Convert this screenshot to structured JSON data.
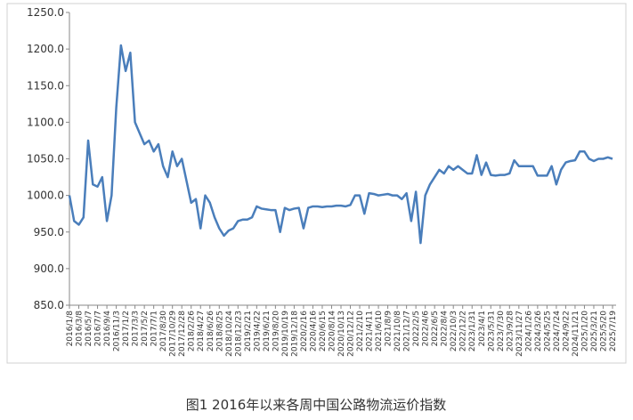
{
  "chart_data": {
    "type": "line",
    "title": "图1 2016年以来各周中国公路物流运价指数",
    "categories": [
      "2016/1/8",
      null,
      "2016/3/8",
      null,
      "2016/5/7",
      null,
      "2016/7/7",
      null,
      "2016/9/4",
      null,
      "2016/11/3",
      null,
      "2017/1/2",
      null,
      "2017/3/3",
      null,
      "2017/5/2",
      null,
      "2017/7/1",
      null,
      "2017/8/30",
      null,
      "2017/10/29",
      null,
      "2017/12/28",
      null,
      "2018/2/26",
      null,
      "2018/4/27",
      null,
      "2018/6/26",
      null,
      "2018/8/25",
      null,
      "2018/10/24",
      null,
      "2018/12/23",
      null,
      "2019/2/21",
      null,
      "2019/4/22",
      null,
      "2019/6/21",
      null,
      "2019/8/20",
      null,
      "2019/10/19",
      null,
      "2019/12/18",
      null,
      "2020/2/16",
      null,
      "2020/4/16",
      null,
      "2020/6/15",
      null,
      "2020/8/14",
      null,
      "2020/10/13",
      null,
      "2020/12/12",
      null,
      "2021/2/10",
      null,
      "2021/4/11",
      null,
      "2021/6/10",
      null,
      "2021/8/9",
      null,
      "2021/10/8",
      null,
      "2021/12/7",
      null,
      "2022/2/5",
      null,
      "2022/4/6",
      null,
      "2022/6/5",
      null,
      "2022/8/4",
      null,
      "2022/10/3",
      null,
      "2022/12/2",
      null,
      "2023/1/31",
      null,
      "2023/4/1",
      null,
      "2023/5/31",
      null,
      "2023/7/30",
      null,
      "2023/9/28",
      null,
      "2023/11/27",
      null,
      "2024/1/26",
      null,
      "2024/3/26",
      null,
      "2024/5/25",
      null,
      "2024/7/24",
      null,
      "2024/9/22",
      null,
      "2024/11/21",
      null,
      "2025/1/20",
      null,
      "2025/3/21",
      null,
      "2025/5/20",
      null,
      "2025/7/19"
    ],
    "values": [
      1000,
      965,
      960,
      970,
      1075,
      1015,
      1012,
      1025,
      965,
      1000,
      1120,
      1205,
      1170,
      1195,
      1100,
      1085,
      1070,
      1075,
      1060,
      1070,
      1040,
      1025,
      1060,
      1040,
      1050,
      1020,
      990,
      995,
      955,
      1000,
      990,
      970,
      955,
      945,
      952,
      955,
      965,
      967,
      967,
      970,
      985,
      982,
      981,
      980,
      980,
      950,
      983,
      980,
      982,
      983,
      955,
      983,
      985,
      985,
      984,
      985,
      985,
      986,
      986,
      985,
      987,
      1000,
      1000,
      975,
      1003,
      1002,
      1000,
      1001,
      1002,
      1000,
      1000,
      995,
      1003,
      965,
      1005,
      935,
      1000,
      1015,
      1025,
      1035,
      1030,
      1040,
      1035,
      1040,
      1035,
      1030,
      1030,
      1055,
      1028,
      1045,
      1028,
      1027,
      1028,
      1028,
      1030,
      1048,
      1040,
      1040,
      1040,
      1040,
      1027,
      1027,
      1027,
      1040,
      1015,
      1035,
      1045,
      1047,
      1048,
      1060,
      1060,
      1050,
      1047,
      1050,
      1050,
      1052,
      1050
    ],
    "color": "#4a7ebb",
    "ylim": [
      850,
      1250
    ],
    "yticks": [
      {
        "value": 850,
        "label": "850.0"
      },
      {
        "value": 900,
        "label": "900.0"
      },
      {
        "value": 950,
        "label": "950.0"
      },
      {
        "value": 1000,
        "label": "1000.0"
      },
      {
        "value": 1050,
        "label": "1050.0"
      },
      {
        "value": 1100,
        "label": "1100.0"
      },
      {
        "value": 1150,
        "label": "1150.0"
      },
      {
        "value": 1200,
        "label": "1200.0"
      },
      {
        "value": 1250,
        "label": "1250.0"
      }
    ],
    "grid": false
  }
}
